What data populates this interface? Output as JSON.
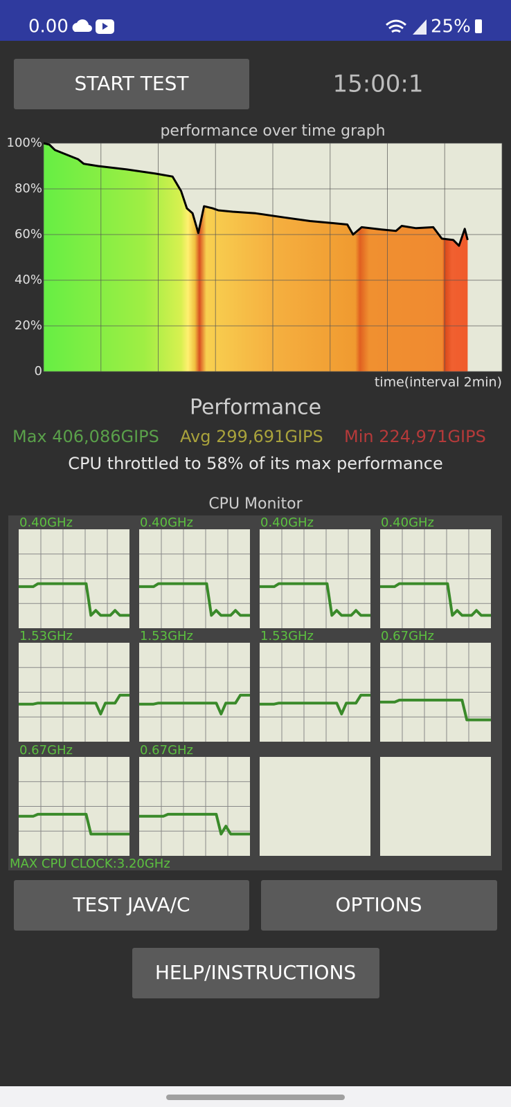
{
  "status_bar": {
    "time": "0.00",
    "battery": "25%"
  },
  "start_button": "START TEST",
  "timer": "15:00:1",
  "performance_graph": {
    "type": "line",
    "title": "performance over time graph",
    "x_label": "time(interval 2min)",
    "x": [
      0,
      0.2,
      0.4,
      1.2,
      1.4,
      1.9,
      2.9,
      3.9,
      4.5,
      4.8,
      5.0,
      5.2,
      5.4,
      5.6,
      5.9,
      6.1,
      6.6,
      7.4,
      8.4,
      9.3,
      10.1,
      10.6,
      10.8,
      11.1,
      11.8,
      12.3,
      12.5,
      13.0,
      13.6,
      13.9,
      14.3,
      14.5,
      14.7,
      14.8
    ],
    "values": [
      100,
      99.4,
      97,
      93,
      91,
      90,
      88.5,
      86.7,
      85.4,
      79,
      71.5,
      69.3,
      60.7,
      72.4,
      71.5,
      70.6,
      70,
      69.3,
      67.5,
      65.9,
      65,
      64.4,
      60,
      63.2,
      62.2,
      61.6,
      63.8,
      62.8,
      63.2,
      58.2,
      57.6,
      55.1,
      62.5,
      57.6
    ],
    "color": "#000000",
    "xlim": [
      0,
      16
    ],
    "xticks": [
      0,
      2,
      4,
      6,
      8,
      10,
      12,
      14,
      16
    ],
    "ylim": [
      0,
      100
    ],
    "yticks": [
      {
        "value": 0,
        "label": "0"
      },
      {
        "value": 20,
        "label": "20%"
      },
      {
        "value": 40,
        "label": "40%"
      },
      {
        "value": 60,
        "label": "60%"
      },
      {
        "value": 80,
        "label": "80%"
      },
      {
        "value": 100,
        "label": "100%"
      }
    ],
    "grid": true
  },
  "performance": {
    "heading": "Performance",
    "max": "Max 406,086GIPS",
    "avg": "Avg 299,691GIPS",
    "min": "Min 224,971GIPS",
    "summary": "CPU throttled to 58% of its max performance"
  },
  "cpu_monitor": {
    "title": "CPU Monitor",
    "ylim": [
      0,
      100
    ],
    "cores": [
      {
        "label": "0.40GHz",
        "trace": [
          42,
          42,
          42,
          42,
          45,
          45,
          45,
          45,
          45,
          45,
          45,
          45,
          45,
          45,
          45,
          13,
          18,
          13,
          13,
          13,
          18,
          13,
          13,
          13
        ]
      },
      {
        "label": "0.40GHz",
        "trace": [
          42,
          42,
          42,
          42,
          45,
          45,
          45,
          45,
          45,
          45,
          45,
          45,
          45,
          45,
          45,
          13,
          18,
          13,
          13,
          13,
          18,
          13,
          13,
          13
        ]
      },
      {
        "label": "0.40GHz",
        "trace": [
          42,
          42,
          42,
          42,
          45,
          45,
          45,
          45,
          45,
          45,
          45,
          45,
          45,
          45,
          45,
          13,
          18,
          13,
          13,
          13,
          18,
          13,
          13,
          13
        ]
      },
      {
        "label": "0.40GHz",
        "trace": [
          42,
          42,
          42,
          42,
          45,
          45,
          45,
          45,
          45,
          45,
          45,
          45,
          45,
          45,
          45,
          13,
          18,
          13,
          13,
          13,
          18,
          13,
          13,
          13
        ]
      },
      {
        "label": "1.53GHz",
        "trace": [
          38,
          38,
          38,
          38,
          39,
          39,
          39,
          39,
          39,
          39,
          39,
          39,
          39,
          39,
          39,
          39,
          39,
          28,
          39,
          39,
          39,
          47,
          47,
          47
        ]
      },
      {
        "label": "1.53GHz",
        "trace": [
          38,
          38,
          38,
          38,
          39,
          39,
          39,
          39,
          39,
          39,
          39,
          39,
          39,
          39,
          39,
          39,
          39,
          28,
          39,
          39,
          39,
          47,
          47,
          47
        ]
      },
      {
        "label": "1.53GHz",
        "trace": [
          38,
          38,
          38,
          38,
          39,
          39,
          39,
          39,
          39,
          39,
          39,
          39,
          39,
          39,
          39,
          39,
          39,
          28,
          39,
          39,
          39,
          47,
          47,
          47
        ]
      },
      {
        "label": "0.67GHz",
        "trace": [
          40,
          40,
          40,
          40,
          42,
          42,
          42,
          42,
          42,
          42,
          42,
          42,
          42,
          42,
          42,
          42,
          42,
          42,
          22,
          22,
          22,
          22,
          22,
          22
        ]
      },
      {
        "label": "0.67GHz",
        "trace": [
          40,
          40,
          40,
          40,
          42,
          42,
          42,
          42,
          42,
          42,
          42,
          42,
          42,
          42,
          42,
          22,
          22,
          22,
          22,
          22,
          22,
          22,
          22,
          22
        ]
      },
      {
        "label": "0.67GHz",
        "trace": [
          40,
          40,
          40,
          40,
          40,
          40,
          42,
          42,
          42,
          42,
          42,
          42,
          42,
          42,
          42,
          42,
          42,
          22,
          30,
          22,
          22,
          22,
          22,
          22
        ]
      }
    ],
    "max_clock": "MAX CPU CLOCK:3.20GHz"
  },
  "buttons": {
    "test": "TEST JAVA/C",
    "options": "OPTIONS",
    "help": "HELP/INSTRUCTIONS"
  }
}
